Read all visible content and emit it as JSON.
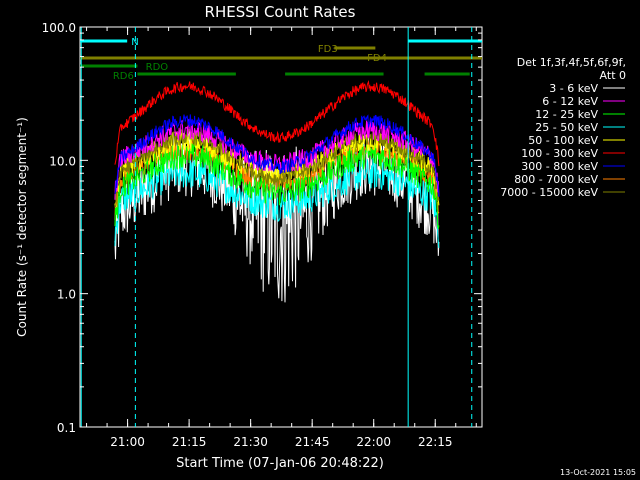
{
  "chart_data": {
    "type": "line",
    "title": "RHESSI Count Rates",
    "xlabel": "Start Time (07-Jan-06 20:48:22)",
    "ylabel": "Count Rate (s⁻¹ detector segment⁻¹)",
    "yscale": "log",
    "ylim": [
      0.1,
      100
    ],
    "xlim_minutes_after_start": [
      0,
      98
    ],
    "x_tick_labels": [
      "21:00",
      "21:15",
      "21:30",
      "21:45",
      "22:00",
      "22:15"
    ],
    "x_tick_minutes_after_start": [
      11.6,
      26.6,
      41.6,
      56.6,
      71.6,
      86.6
    ],
    "y_tick_labels": [
      "0.1",
      "1.0",
      "10.0",
      "100.0"
    ],
    "y_tick_values": [
      0.1,
      1,
      10,
      100
    ],
    "legend_header": [
      "Det 1f,3f,4f,5f,6f,9f,",
      "Att 0"
    ],
    "legend_position": "right",
    "series": [
      {
        "name": "3 - 6 keV",
        "color": "#ffffff",
        "base": 9.5,
        "dip": 3.0,
        "noise": 0.25
      },
      {
        "name": "6 - 12 keV",
        "color": "#ff00ff",
        "base": 17,
        "dip": 9,
        "noise": 0.08
      },
      {
        "name": "12 - 25 keV",
        "color": "#00ff00",
        "base": 11,
        "dip": 5.5,
        "noise": 0.1
      },
      {
        "name": "25 - 50 keV",
        "color": "#00ffff",
        "base": 8,
        "dip": 4.5,
        "noise": 0.12
      },
      {
        "name": "50 - 100 keV",
        "color": "#ffff00",
        "base": 14,
        "dip": 7.5,
        "noise": 0.08
      },
      {
        "name": "100 - 300 keV",
        "color": "#ff0000",
        "base": 36,
        "dip": 14,
        "noise": 0.04
      },
      {
        "name": "300 - 800 keV",
        "color": "#0000ff",
        "base": 20,
        "dip": 8.5,
        "noise": 0.05
      },
      {
        "name": "800 - 7000 keV",
        "color": "#ff7f00",
        "base": 12,
        "dip": 6.5,
        "noise": 0.08
      },
      {
        "name": "7000 - 15000 keV",
        "color": "#808000",
        "base": 15,
        "dip": 7,
        "noise": 0.06
      }
    ],
    "data_window_minutes": [
      8.5,
      87.5
    ],
    "peak_minutes": [
      26,
      71
    ],
    "dip_minute": 48.5,
    "flag_bars": [
      {
        "label": "N",
        "color": "#00ffff",
        "segments": [
          [
            0,
            11.5
          ],
          [
            80,
            98
          ]
        ],
        "level": 0
      },
      {
        "label": "FD3",
        "color": "#808000",
        "segments": [
          [
            62,
            72
          ]
        ],
        "level": 1
      },
      {
        "label": "FD4",
        "color": "#808000",
        "segments": [
          [
            0,
            98
          ]
        ],
        "level": 2
      },
      {
        "label": "RDO",
        "color": "#008000",
        "segments": [
          [
            0,
            14
          ]
        ],
        "level": 3
      },
      {
        "label": "RD6",
        "color": "#008000",
        "segments": [
          [
            14,
            38
          ],
          [
            50,
            74
          ],
          [
            84,
            95
          ]
        ],
        "level": 4
      }
    ],
    "vertical_lines": [
      {
        "minute": 0.3,
        "color": "#00ffff",
        "style": "solid"
      },
      {
        "minute": 13.5,
        "color": "#00ffff",
        "style": "dashed"
      },
      {
        "minute": 80,
        "color": "#00ffff",
        "style": "solid"
      },
      {
        "minute": 95.5,
        "color": "#00ffff",
        "style": "dashed"
      }
    ]
  },
  "footer_timestamp": "13-Oct-2021 15:05"
}
